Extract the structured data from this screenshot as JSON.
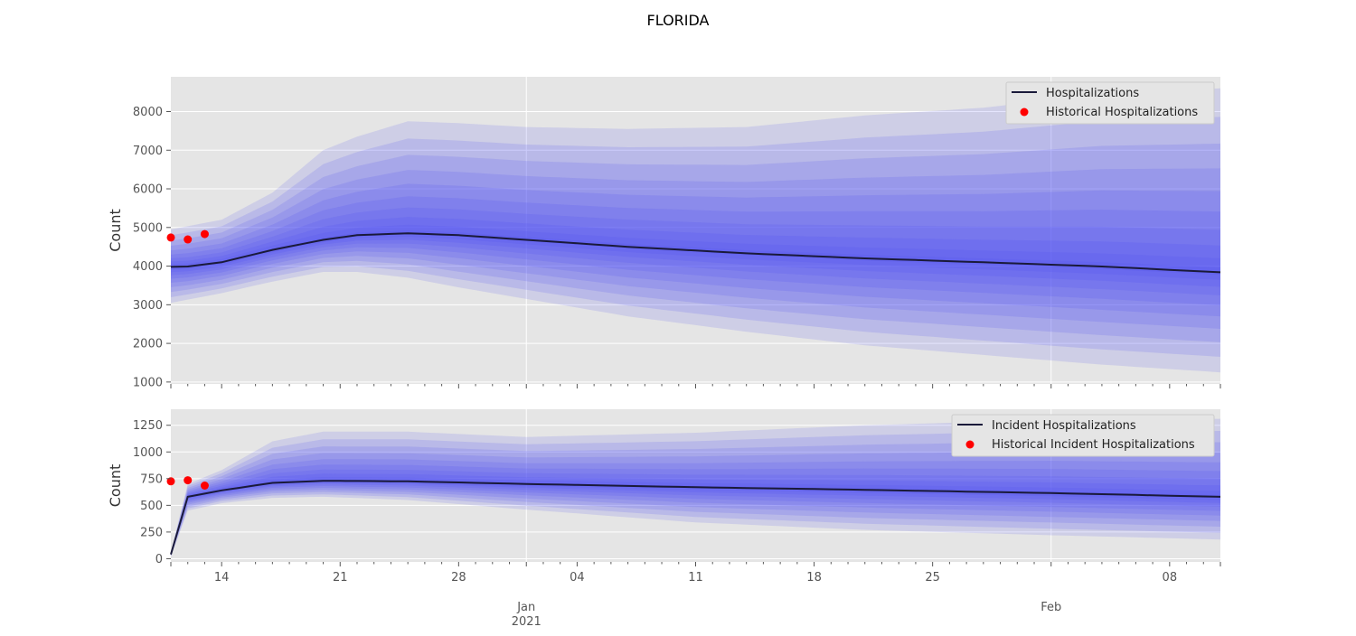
{
  "chart_data": {
    "title": "FLORIDA",
    "type": "area",
    "x_axis": {
      "day_ticks": [
        "14",
        "21",
        "28",
        "04",
        "11",
        "18",
        "25",
        "08"
      ],
      "month_ticks": [
        {
          "label": "Jan",
          "sublabel": "2021"
        },
        {
          "label": "Feb",
          "sublabel": ""
        }
      ],
      "start_date": "2020-12-11",
      "end_date": "2021-02-11"
    },
    "panels": [
      {
        "id": "hospitalizations",
        "ylabel": "Count",
        "ylim": [
          950,
          8900
        ],
        "yticks": [
          1000,
          2000,
          3000,
          4000,
          5000,
          6000,
          7000,
          8000
        ],
        "legend": {
          "position": "top-right",
          "line_label": "Hospitalizations",
          "points_label": "Historical Hospitalizations"
        },
        "median": {
          "name": "Hospitalizations",
          "x": [
            "2020-12-11",
            "2020-12-12",
            "2020-12-14",
            "2020-12-17",
            "2020-12-20",
            "2020-12-22",
            "2020-12-25",
            "2020-12-28",
            "2021-01-01",
            "2021-01-07",
            "2021-01-14",
            "2021-01-21",
            "2021-01-28",
            "2021-02-04",
            "2021-02-11"
          ],
          "y": [
            3980,
            3990,
            4100,
            4420,
            4680,
            4800,
            4850,
            4800,
            4680,
            4500,
            4330,
            4200,
            4100,
            3990,
            3840
          ]
        },
        "historical": {
          "name": "Historical Hospitalizations",
          "x": [
            "2020-12-11",
            "2020-12-12",
            "2020-12-13"
          ],
          "y": [
            4740,
            4690,
            4830
          ]
        },
        "interval_bounds": {
          "x": [
            "2020-12-11",
            "2020-12-14",
            "2020-12-17",
            "2020-12-20",
            "2020-12-22",
            "2020-12-25",
            "2020-12-28",
            "2021-01-01",
            "2021-01-07",
            "2021-01-14",
            "2021-01-21",
            "2021-01-28",
            "2021-02-04",
            "2021-02-11"
          ],
          "upper": [
            4950,
            5200,
            5900,
            7000,
            7350,
            7750,
            7700,
            7600,
            7550,
            7600,
            7900,
            8100,
            8450,
            8600
          ],
          "lower": [
            3050,
            3300,
            3600,
            3850,
            3850,
            3700,
            3450,
            3150,
            2700,
            2300,
            1950,
            1700,
            1450,
            1250
          ]
        }
      },
      {
        "id": "incident_hospitalizations",
        "ylabel": "Count",
        "ylim": [
          -30,
          1400
        ],
        "yticks": [
          0,
          250,
          500,
          750,
          1000,
          1250
        ],
        "legend": {
          "position": "top-right",
          "line_label": "Incident Hospitalizations",
          "points_label": "Historical Incident Hospitalizations"
        },
        "median": {
          "name": "Incident Hospitalizations",
          "x": [
            "2020-12-11",
            "2020-12-12",
            "2020-12-14",
            "2020-12-17",
            "2020-12-20",
            "2020-12-25",
            "2021-01-01",
            "2021-01-11",
            "2021-01-21",
            "2021-02-01",
            "2021-02-11"
          ],
          "y": [
            40,
            580,
            640,
            710,
            730,
            725,
            700,
            670,
            645,
            615,
            580
          ]
        },
        "historical": {
          "name": "Historical Incident Hospitalizations",
          "x": [
            "2020-12-11",
            "2020-12-12",
            "2020-12-13"
          ],
          "y": [
            725,
            735,
            685
          ]
        },
        "interval_bounds": {
          "x": [
            "2020-12-11",
            "2020-12-12",
            "2020-12-14",
            "2020-12-17",
            "2020-12-20",
            "2020-12-25",
            "2021-01-01",
            "2021-01-11",
            "2021-01-21",
            "2021-02-01",
            "2021-02-11"
          ],
          "upper": [
            60,
            700,
            830,
            1100,
            1190,
            1190,
            1140,
            1180,
            1250,
            1300,
            1310
          ],
          "lower": [
            20,
            450,
            520,
            570,
            580,
            550,
            460,
            340,
            270,
            220,
            180
          ]
        }
      }
    ],
    "colors": {
      "axes_bg": "#e5e5e5",
      "grid": "#ffffff",
      "band": "#4a4af4",
      "median_line": "#1a1a3a",
      "historical_points": "#ff0000"
    }
  }
}
